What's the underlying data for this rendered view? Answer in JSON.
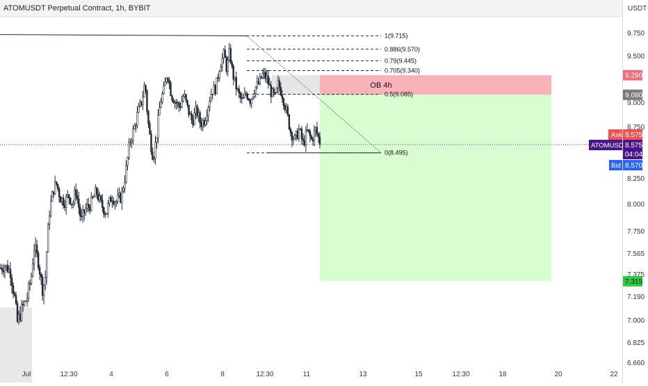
{
  "header": {
    "title": "ATOMUSDT Perpetual Contract, 1h, BYBIT"
  },
  "chart_data": {
    "type": "candlestick",
    "title": "ATOMUSDT Perpetual Contract, 1h, BYBIT",
    "currency": "USDT",
    "xlabel": "",
    "ylabel": "",
    "ylim": [
      6.66,
      9.95
    ],
    "x_ticks": [
      "Jul",
      "12:30",
      "4",
      "6",
      "8",
      "12:30",
      "11",
      "13",
      "15",
      "12:30",
      "18",
      "20",
      "22"
    ],
    "y_ticks": [
      {
        "label": "9.750",
        "value": 9.75
      },
      {
        "label": "9.500",
        "value": 9.5
      },
      {
        "label": "9.000",
        "value": 9.0
      },
      {
        "label": "8.750",
        "value": 8.75
      },
      {
        "label": "8.250",
        "value": 8.25
      },
      {
        "label": "8.000",
        "value": 8.0
      },
      {
        "label": "7.750",
        "value": 7.75
      },
      {
        "label": "7.565",
        "value": 7.565
      },
      {
        "label": "7.375",
        "value": 7.375
      },
      {
        "label": "7.190",
        "value": 7.19
      },
      {
        "label": "7.000",
        "value": 7.0
      },
      {
        "label": "6.825",
        "value": 6.825
      },
      {
        "label": "6.660",
        "value": 6.66
      }
    ],
    "price_path": [
      {
        "x": 0,
        "y": 7.43
      },
      {
        "x": 0.3,
        "y": 7.45
      },
      {
        "x": 0.7,
        "y": 7.4
      },
      {
        "x": 1.0,
        "y": 7.18
      },
      {
        "x": 1.2,
        "y": 6.98
      },
      {
        "x": 1.5,
        "y": 7.08
      },
      {
        "x": 1.9,
        "y": 7.18
      },
      {
        "x": 2.2,
        "y": 7.35
      },
      {
        "x": 2.4,
        "y": 7.62
      },
      {
        "x": 2.7,
        "y": 7.5
      },
      {
        "x": 3.0,
        "y": 7.25
      },
      {
        "x": 3.2,
        "y": 7.32
      },
      {
        "x": 3.3,
        "y": 7.55
      },
      {
        "x": 3.5,
        "y": 7.92
      },
      {
        "x": 3.8,
        "y": 8.14
      },
      {
        "x": 4.0,
        "y": 8.2
      },
      {
        "x": 4.3,
        "y": 8.06
      },
      {
        "x": 4.6,
        "y": 8.02
      },
      {
        "x": 4.9,
        "y": 8.08
      },
      {
        "x": 5.2,
        "y": 8.0
      },
      {
        "x": 5.4,
        "y": 8.14
      },
      {
        "x": 5.8,
        "y": 7.84
      },
      {
        "x": 6.1,
        "y": 7.95
      },
      {
        "x": 6.5,
        "y": 8.0
      },
      {
        "x": 6.9,
        "y": 8.12
      },
      {
        "x": 7.2,
        "y": 8.0
      },
      {
        "x": 7.6,
        "y": 7.92
      },
      {
        "x": 8.0,
        "y": 8.08
      },
      {
        "x": 8.3,
        "y": 8.02
      },
      {
        "x": 8.7,
        "y": 8.07
      },
      {
        "x": 9.0,
        "y": 8.3
      },
      {
        "x": 9.3,
        "y": 8.6
      },
      {
        "x": 9.6,
        "y": 8.72
      },
      {
        "x": 9.9,
        "y": 8.9
      },
      {
        "x": 10.2,
        "y": 9.03
      },
      {
        "x": 10.4,
        "y": 9.22
      },
      {
        "x": 10.6,
        "y": 8.82
      },
      {
        "x": 10.8,
        "y": 8.6
      },
      {
        "x": 11.0,
        "y": 8.45
      },
      {
        "x": 11.2,
        "y": 8.62
      },
      {
        "x": 11.5,
        "y": 9.0
      },
      {
        "x": 11.8,
        "y": 9.15
      },
      {
        "x": 12.0,
        "y": 9.33
      },
      {
        "x": 12.3,
        "y": 9.08
      },
      {
        "x": 12.6,
        "y": 9.0
      },
      {
        "x": 12.9,
        "y": 8.95
      },
      {
        "x": 13.2,
        "y": 9.08
      },
      {
        "x": 13.5,
        "y": 8.92
      },
      {
        "x": 13.8,
        "y": 8.8
      },
      {
        "x": 14.1,
        "y": 8.92
      },
      {
        "x": 14.4,
        "y": 8.78
      },
      {
        "x": 14.7,
        "y": 8.82
      },
      {
        "x": 15.0,
        "y": 9.0
      },
      {
        "x": 15.2,
        "y": 9.12
      },
      {
        "x": 15.5,
        "y": 9.15
      },
      {
        "x": 15.8,
        "y": 9.4
      },
      {
        "x": 16.1,
        "y": 9.52
      },
      {
        "x": 16.3,
        "y": 9.35
      },
      {
        "x": 16.5,
        "y": 9.55
      },
      {
        "x": 16.7,
        "y": 9.32
      },
      {
        "x": 16.9,
        "y": 9.2
      },
      {
        "x": 17.1,
        "y": 9.1
      },
      {
        "x": 17.4,
        "y": 9.0
      },
      {
        "x": 17.7,
        "y": 9.1
      },
      {
        "x": 18.0,
        "y": 9.02
      },
      {
        "x": 18.3,
        "y": 9.15
      },
      {
        "x": 18.6,
        "y": 9.2
      },
      {
        "x": 18.9,
        "y": 9.3
      },
      {
        "x": 19.2,
        "y": 9.25
      },
      {
        "x": 19.5,
        "y": 9.1
      },
      {
        "x": 19.8,
        "y": 9.05
      },
      {
        "x": 20.0,
        "y": 9.2
      },
      {
        "x": 20.3,
        "y": 9.08
      },
      {
        "x": 20.6,
        "y": 8.9
      },
      {
        "x": 20.9,
        "y": 8.7
      },
      {
        "x": 21.2,
        "y": 8.62
      },
      {
        "x": 21.5,
        "y": 8.72
      },
      {
        "x": 21.8,
        "y": 8.58
      },
      {
        "x": 22.1,
        "y": 8.7
      },
      {
        "x": 22.4,
        "y": 8.62
      },
      {
        "x": 22.7,
        "y": 8.72
      },
      {
        "x": 23.0,
        "y": 8.6
      }
    ],
    "fib_levels": [
      {
        "label": "1(9.715)",
        "value": 9.715
      },
      {
        "label": "0.886(9.570)",
        "value": 9.57
      },
      {
        "label": "0.79(9.445)",
        "value": 9.445
      },
      {
        "label": "0.705(9.340)",
        "value": 9.34
      },
      {
        "label": "0.5(9.085)",
        "value": 9.085
      },
      {
        "label": "0(8.495)",
        "value": 8.495
      }
    ],
    "order_block": {
      "label": "OB 4h",
      "high": 9.29,
      "low": 9.08
    },
    "stop_zone": {
      "top": 9.29,
      "bottom": 9.08
    },
    "target_zone": {
      "top": 9.08,
      "bottom": 7.315
    },
    "support_zone": {
      "top": 7.1,
      "bottom": 6.66
    },
    "resistance_line_value": 9.715,
    "current_price": 8.575
  },
  "price_scale": {
    "currency": "USDT",
    "stop_tag": "9.290",
    "ob_tag": "9.080",
    "ask_label": "Ask",
    "ask_value": "8.575",
    "symbol_tag": "ATOMUSDT",
    "last_value": "8.575",
    "countdown": "04:04",
    "bid_label": "Bid",
    "bid_value": "8.570",
    "target_tag": "7.315"
  },
  "colors": {
    "stop_fill": "#f7b3b8",
    "target_fill": "#d7fdd0",
    "ob_fill": "#e6e6e6",
    "ask_red": "#ef5350",
    "symbol_purple": "#4a148c",
    "bid_blue": "#2962ff",
    "target_green": "#2ecc40",
    "ob_tag_gray": "#7a7a7a",
    "candle": "#1f2633"
  }
}
